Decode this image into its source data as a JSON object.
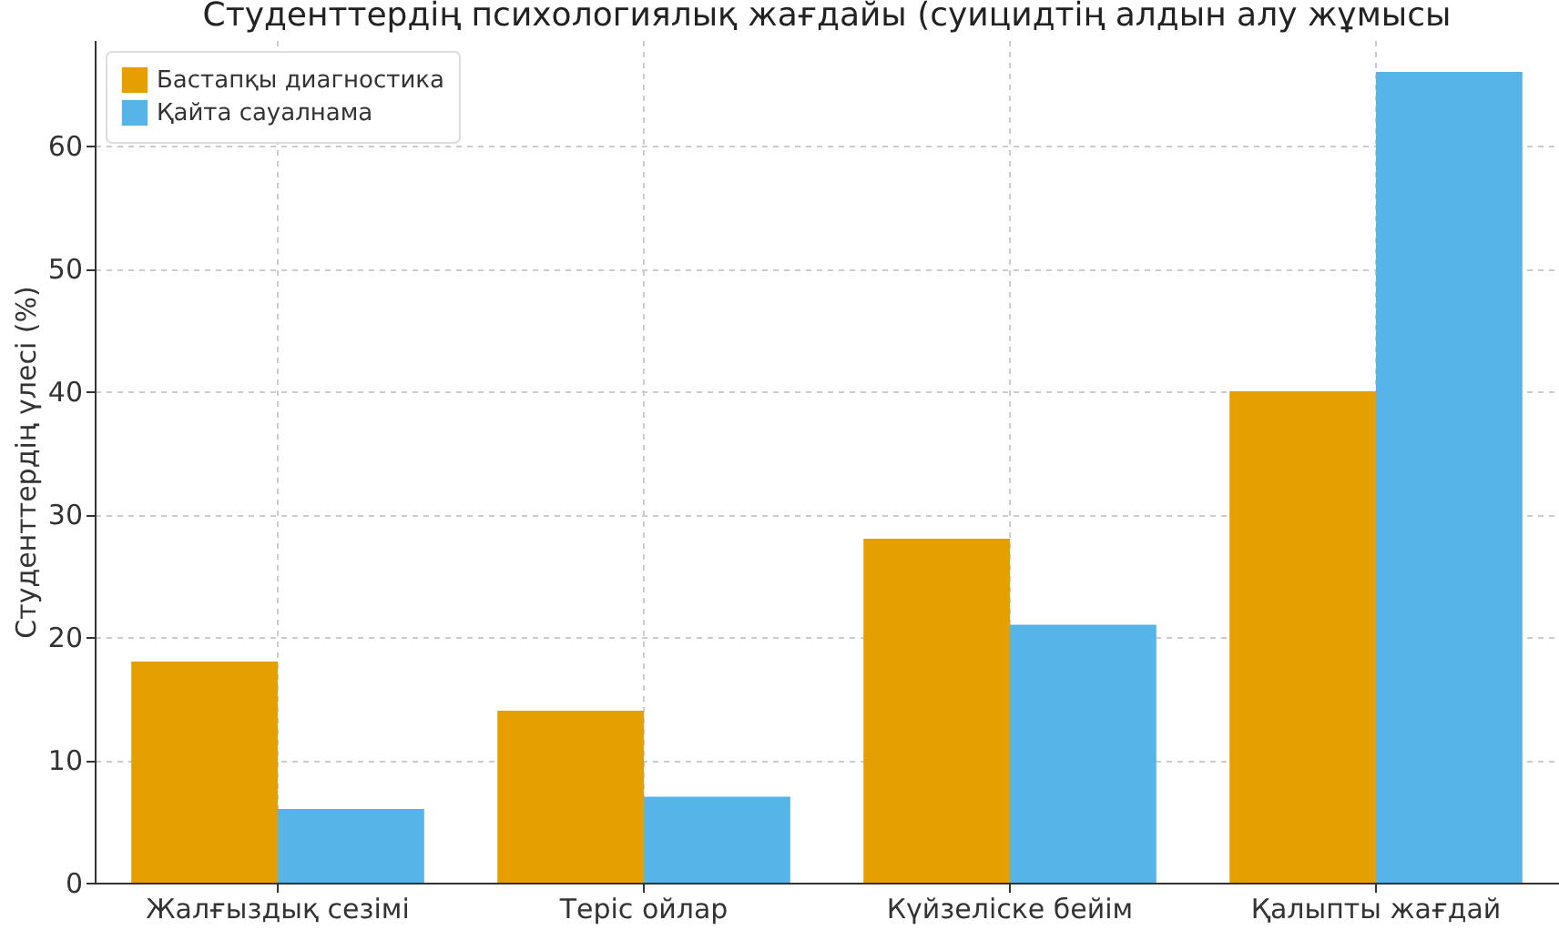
{
  "chart_data": {
    "type": "bar",
    "title": "Студенттердің психологиялық жағдайы (суицидтің алдын алу жұмысы",
    "ylabel": "Студенттердің үлесі (%)",
    "categories": [
      "Жалғыздық сезімі",
      "Теріс ойлар",
      "Күйзеліске бейім",
      "Қалыпты жағдай"
    ],
    "series": [
      {
        "name": "Бастапқы диагностика",
        "color": "#e69f00",
        "values": [
          18,
          14,
          28,
          40
        ]
      },
      {
        "name": "Қайта сауалнама",
        "color": "#56b4e9",
        "values": [
          6,
          7,
          21,
          66
        ]
      }
    ],
    "ylim": [
      0,
      68.6
    ],
    "yticks": [
      0,
      10,
      20,
      30,
      40,
      50,
      60
    ],
    "grid": true,
    "legend": "top left"
  }
}
